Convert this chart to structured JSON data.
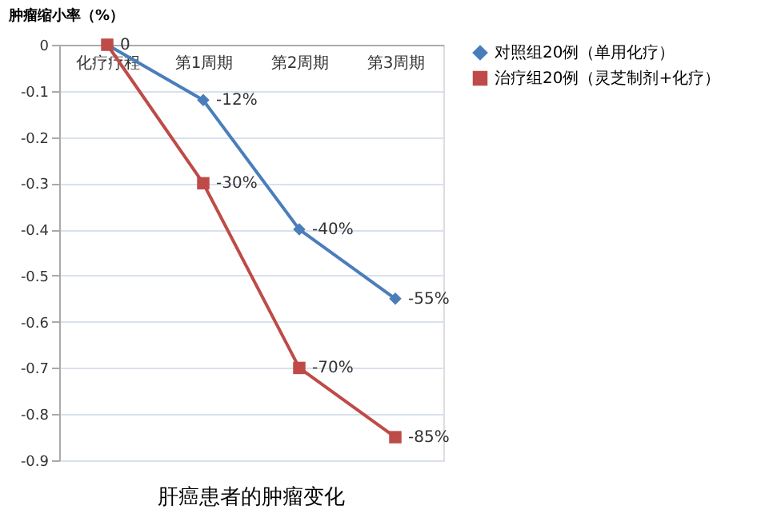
{
  "chart_data": {
    "type": "line",
    "title": "肝癌患者的肿瘤变化",
    "ylabel": "肿瘤缩小率（%）",
    "categories": [
      "化疗疗程",
      "第1周期",
      "第2周期",
      "第3周期"
    ],
    "series": [
      {
        "name": "对照组20例（单用化疗）",
        "color": "#4a7ebb",
        "marker": "diamond",
        "values": [
          0,
          -0.12,
          -0.4,
          -0.55
        ],
        "value_labels": [
          null,
          "-12%",
          "-40%",
          "-55%"
        ]
      },
      {
        "name": "治疗组20例（灵芝制剂+化疗）",
        "color": "#be4b48",
        "marker": "square",
        "values": [
          0,
          -0.3,
          -0.7,
          -0.85
        ],
        "value_labels": [
          "0",
          "-30%",
          "-70%",
          "-85%"
        ]
      }
    ],
    "ylim": [
      -0.9,
      0
    ],
    "yticks": [
      0,
      -0.1,
      -0.2,
      -0.3,
      -0.4,
      -0.5,
      -0.6,
      -0.7,
      -0.8,
      -0.9
    ],
    "grid": "y",
    "legend": "right",
    "line_style": "solid"
  }
}
